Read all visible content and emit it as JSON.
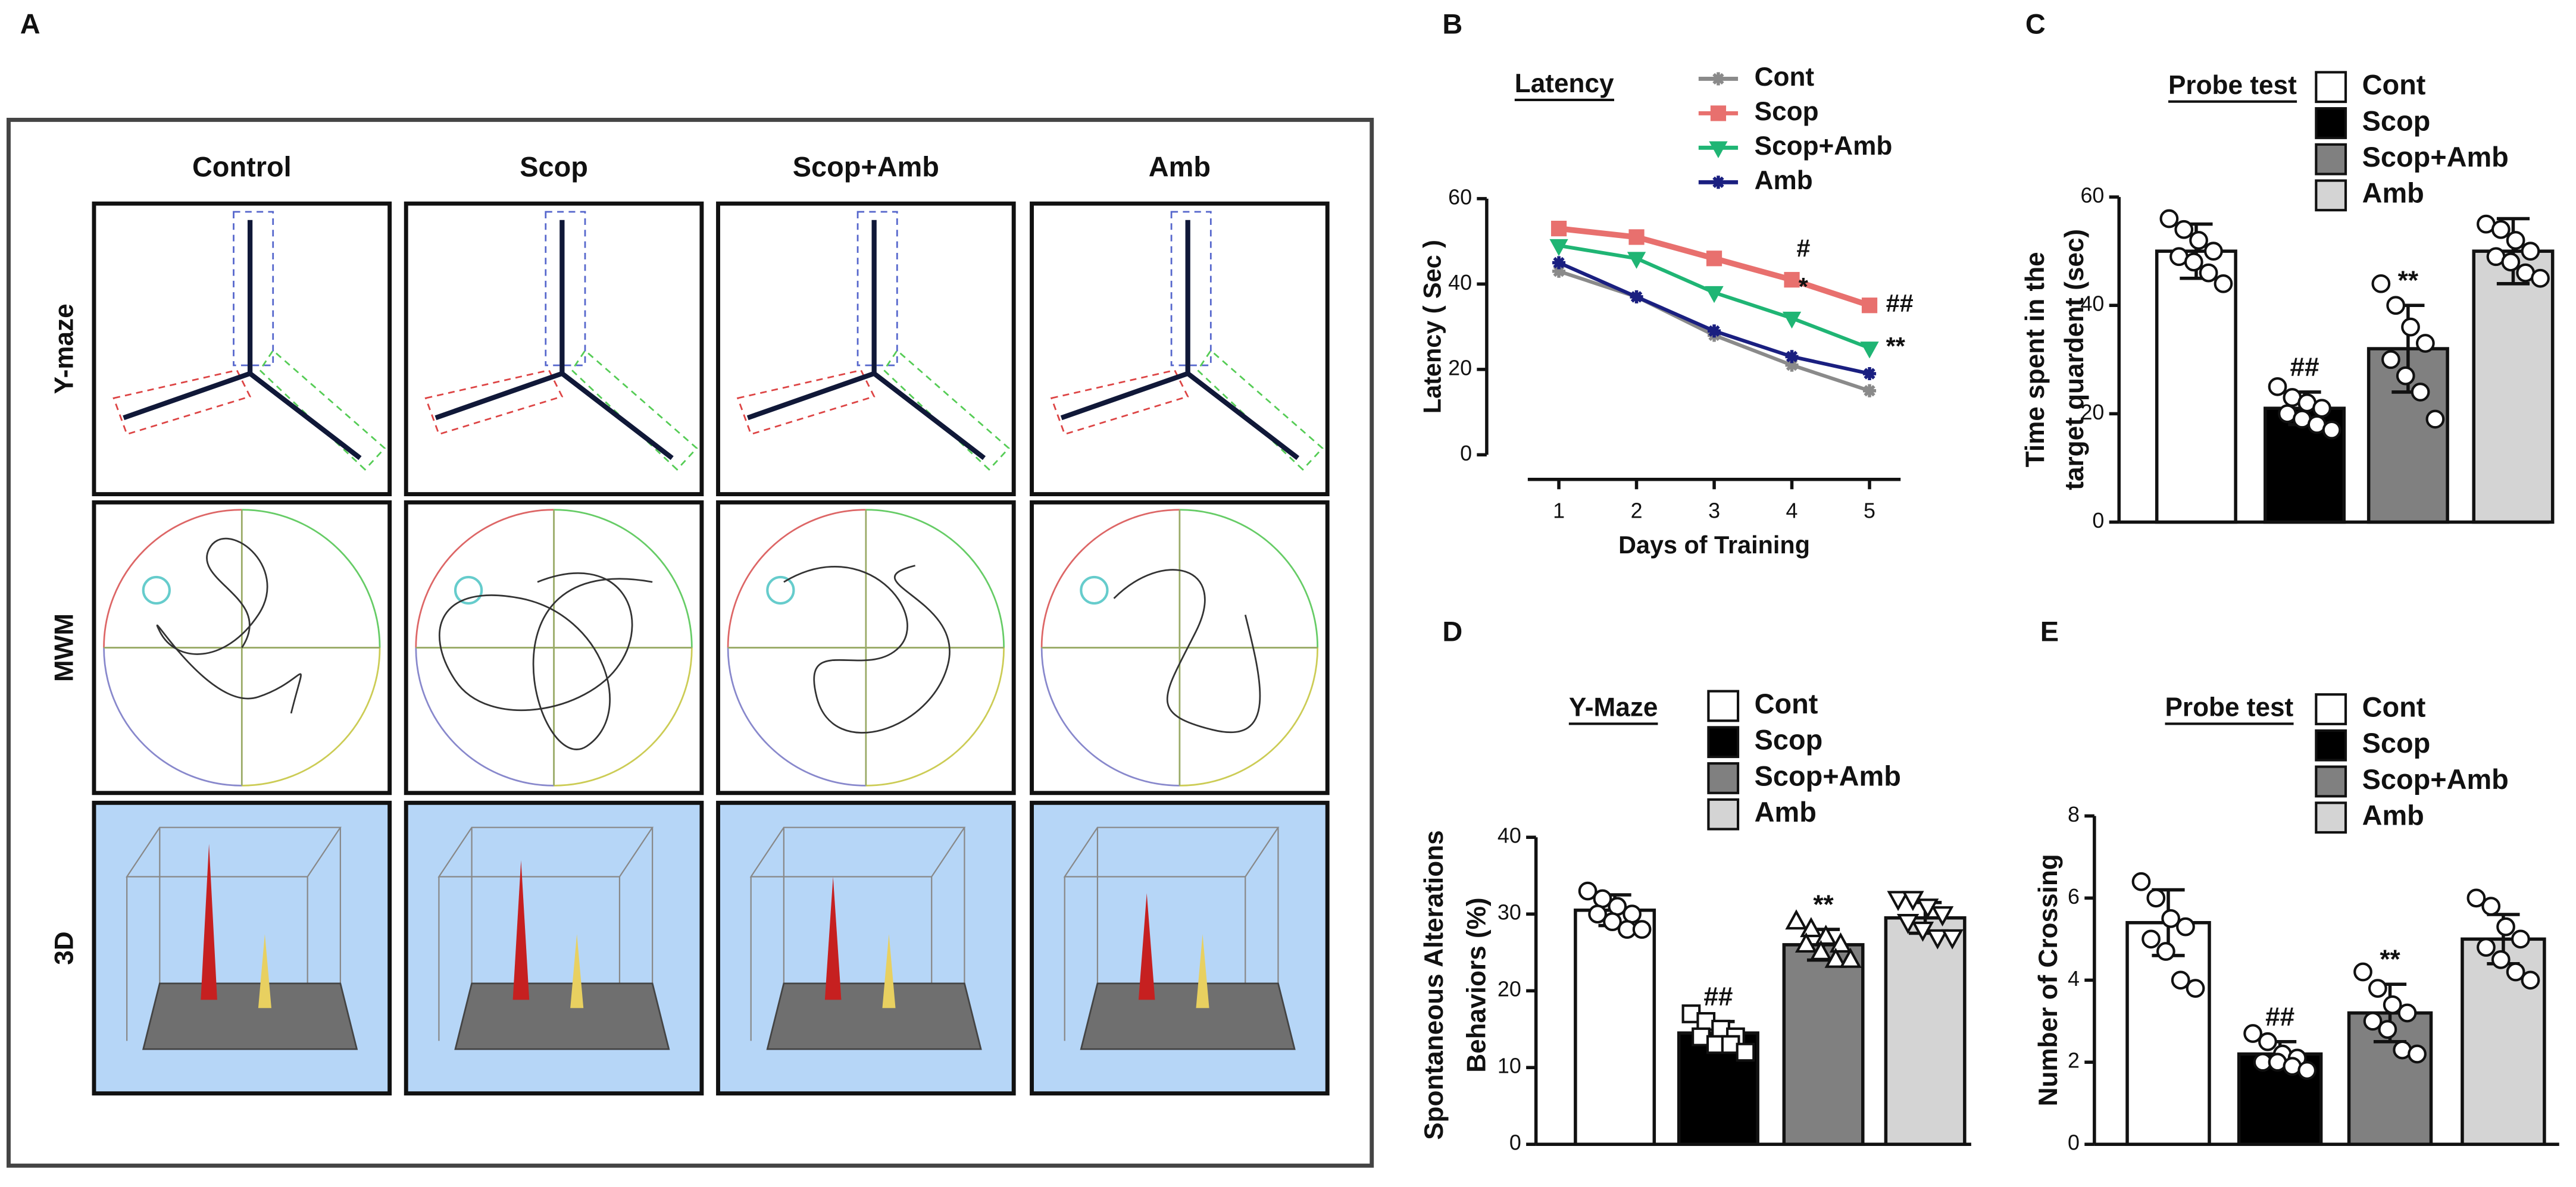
{
  "panel_a": {
    "label": "A",
    "columns": [
      "Control",
      "Scop",
      "Scop+Amb",
      "Amb"
    ],
    "rows": [
      "Y-maze",
      "MWM",
      "3D"
    ]
  },
  "chart_data": [
    {
      "type": "line",
      "panel": "B",
      "title": "Latency",
      "xlabel": "Days of Training",
      "ylabel": "Latency ( Sec )",
      "x": [
        1,
        2,
        3,
        4,
        5
      ],
      "xlim": [
        0.6,
        5.4
      ],
      "xticks": [
        1,
        2,
        3,
        4,
        5
      ],
      "ylim": [
        0,
        60
      ],
      "yticks": [
        0,
        20,
        40,
        60
      ],
      "series": [
        {
          "name": "Cont",
          "color": "#8a8a8a",
          "marker": "star",
          "values": [
            43,
            37,
            28,
            21,
            15
          ]
        },
        {
          "name": "Scop",
          "color": "#e8706e",
          "marker": "square",
          "values": [
            53,
            51,
            46,
            41,
            35
          ]
        },
        {
          "name": "Scop+Amb",
          "color": "#1fb574",
          "marker": "triangle-down",
          "values": [
            49,
            46,
            38,
            32,
            25
          ]
        },
        {
          "name": "Amb",
          "color": "#1a1f80",
          "marker": "star",
          "values": [
            45,
            37,
            29,
            23,
            19
          ]
        }
      ],
      "annotations": [
        {
          "series": 1,
          "index": 3,
          "text": "#",
          "position": "above"
        },
        {
          "series": 2,
          "index": 3,
          "text": "*",
          "position": "above"
        },
        {
          "series": 1,
          "index": 4,
          "text": "##",
          "position": "right"
        },
        {
          "series": 2,
          "index": 4,
          "text": "**",
          "position": "right"
        }
      ]
    },
    {
      "type": "bar",
      "panel": "C",
      "title": "Probe test",
      "ylabel": [
        "Time spent in the",
        "target quardent (sec)"
      ],
      "categories": [
        "Cont",
        "Scop",
        "Scop+Amb",
        "Amb"
      ],
      "colors": [
        "#ffffff",
        "#000000",
        "#808080",
        "#d4d4d4"
      ],
      "values": [
        50,
        21,
        32,
        50
      ],
      "errors": [
        5,
        3,
        8,
        6
      ],
      "ylim": [
        0,
        60
      ],
      "yticks": [
        0,
        20,
        40,
        60
      ],
      "markers": [
        "circle",
        "circle",
        "circle",
        "circle"
      ],
      "points": [
        [
          56,
          54,
          52,
          50,
          49,
          48,
          46,
          44
        ],
        [
          25,
          23,
          22,
          21,
          20,
          19,
          18,
          17
        ],
        [
          44,
          40,
          36,
          33,
          30,
          27,
          24,
          19
        ],
        [
          55,
          54,
          52,
          50,
          49,
          48,
          46,
          45
        ]
      ],
      "annotations": [
        {
          "index": 1,
          "text": "##"
        },
        {
          "index": 2,
          "text": "**"
        }
      ]
    },
    {
      "type": "bar",
      "panel": "D",
      "title": "Y-Maze",
      "ylabel": [
        "Spontaneous Alterations",
        "Behaviors (%)"
      ],
      "categories": [
        "Cont",
        "Scop",
        "Scop+Amb",
        "Amb"
      ],
      "colors": [
        "#ffffff",
        "#000000",
        "#808080",
        "#d4d4d4"
      ],
      "values": [
        30.5,
        14.5,
        26,
        29.5
      ],
      "errors": [
        2,
        1.5,
        2,
        2
      ],
      "ylim": [
        0,
        40
      ],
      "yticks": [
        0,
        10,
        20,
        30,
        40
      ],
      "markers": [
        "circle",
        "square",
        "triangle-up",
        "triangle-down"
      ],
      "points": [
        [
          33,
          32,
          31,
          30,
          30,
          29,
          28,
          28
        ],
        [
          17,
          16,
          15,
          14,
          14,
          13,
          13,
          12
        ],
        [
          29,
          28,
          27,
          26,
          26,
          25,
          24,
          24
        ],
        [
          32,
          32,
          31,
          30,
          29,
          28,
          27,
          27
        ]
      ],
      "annotations": [
        {
          "index": 1,
          "text": "##"
        },
        {
          "index": 2,
          "text": "**"
        }
      ]
    },
    {
      "type": "bar",
      "panel": "E",
      "title": "Probe test",
      "ylabel": [
        "Number of Crossing"
      ],
      "categories": [
        "Cont",
        "Scop",
        "Scop+Amb",
        "Amb"
      ],
      "colors": [
        "#ffffff",
        "#000000",
        "#808080",
        "#d4d4d4"
      ],
      "values": [
        5.4,
        2.2,
        3.2,
        5.0
      ],
      "errors": [
        0.8,
        0.3,
        0.7,
        0.6
      ],
      "ylim": [
        0,
        8
      ],
      "yticks": [
        0,
        2,
        4,
        6,
        8
      ],
      "markers": [
        "circle",
        "circle",
        "circle",
        "circle"
      ],
      "points": [
        [
          6.4,
          6,
          5.5,
          5.3,
          5,
          4.7,
          4,
          3.8
        ],
        [
          2.7,
          2.5,
          2.2,
          2.1,
          2,
          2,
          1.9,
          1.8
        ],
        [
          4.2,
          3.8,
          3.4,
          3.2,
          3,
          2.8,
          2.3,
          2.2
        ],
        [
          6,
          5.8,
          5.3,
          5,
          4.8,
          4.5,
          4.2,
          4
        ]
      ],
      "annotations": [
        {
          "index": 1,
          "text": "##"
        },
        {
          "index": 2,
          "text": "**"
        }
      ]
    }
  ]
}
